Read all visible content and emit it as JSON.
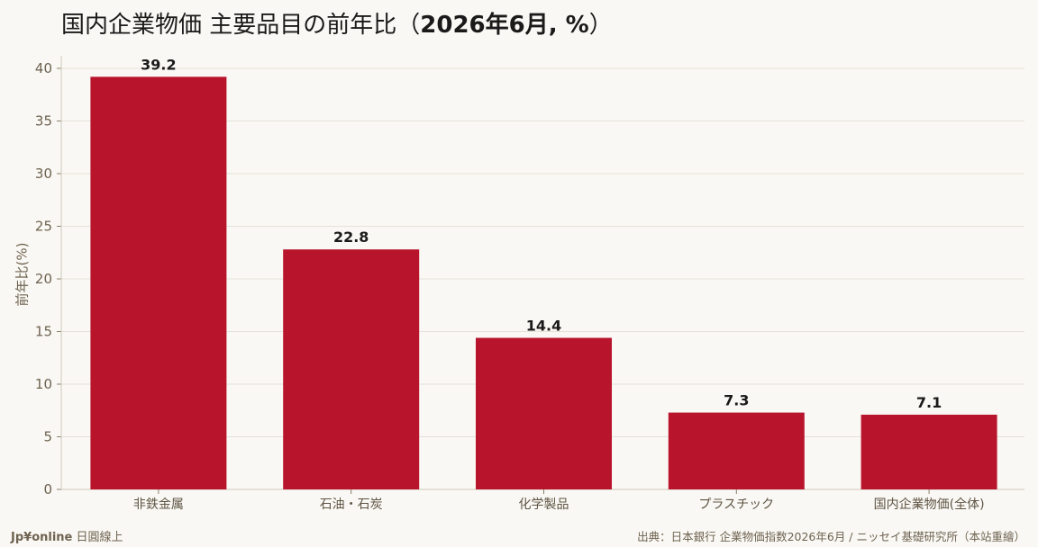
{
  "title": {
    "main": "国内企業物価 主要品目の前年比（",
    "bold": "2026年6月, %",
    "end": "）"
  },
  "footer": {
    "brand": "Jp¥online",
    "sub": " 日圓線上",
    "source": "出典：日本銀行 企業物価指数2026年6月 / ニッセイ基礎研究所（本站重繪）"
  },
  "chart_data": {
    "type": "bar",
    "title": "国内企業物価 主要品目の前年比（2026年6月, %）",
    "xlabel": "",
    "ylabel": "前年比(%)",
    "categories": [
      "非鉄金属",
      "石油・石炭",
      "化学製品",
      "プラスチック",
      "国内企業物価(全体)"
    ],
    "values": [
      39.2,
      22.8,
      14.4,
      7.3,
      7.1
    ],
    "data_labels": [
      "39.2",
      "22.8",
      "14.4",
      "7.3",
      "7.1"
    ],
    "ylim": [
      0,
      40
    ],
    "yticks": [
      0,
      5,
      10,
      15,
      20,
      25,
      30,
      35,
      40
    ],
    "grid": true,
    "legend": "none",
    "bar_color": "#b8152d"
  }
}
